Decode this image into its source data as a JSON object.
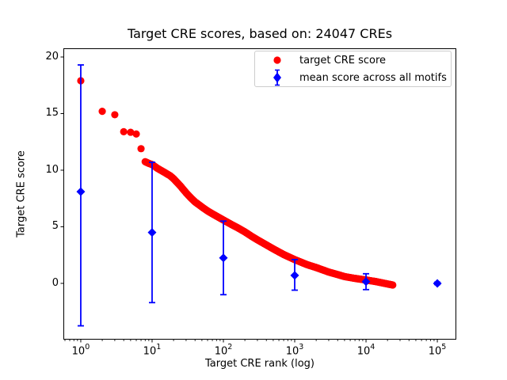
{
  "title": "Target CRE scores, based on: 24047 CREs",
  "chart_data": {
    "type": "scatter",
    "title": "Target CRE scores, based on: 24047 CREs",
    "xlabel": "Target CRE rank (log)",
    "ylabel": "Target CRE score",
    "x_scale": "log",
    "xlim_log10": [
      -0.244,
      5.266
    ],
    "ylim": [
      -4.97,
      20.77
    ],
    "grid": false,
    "legend_position": "upper center-right",
    "colors": {
      "red": "#ff0000",
      "blue": "#0000ff",
      "axis": "#000000"
    },
    "x_major_ticks": [
      {
        "base": "10",
        "exp": "0",
        "log10": 0
      },
      {
        "base": "10",
        "exp": "1",
        "log10": 1
      },
      {
        "base": "10",
        "exp": "2",
        "log10": 2
      },
      {
        "base": "10",
        "exp": "3",
        "log10": 3
      },
      {
        "base": "10",
        "exp": "4",
        "log10": 4
      },
      {
        "base": "10",
        "exp": "5",
        "log10": 5
      }
    ],
    "y_ticks": [
      {
        "value": 0,
        "label": "0"
      },
      {
        "value": 5,
        "label": "5"
      },
      {
        "value": 10,
        "label": "10"
      },
      {
        "value": 15,
        "label": "15"
      },
      {
        "value": 20,
        "label": "20"
      }
    ],
    "legend": [
      {
        "label": "target CRE score",
        "color": "#ff0000",
        "marker": "circle"
      },
      {
        "label": "mean score across all motifs",
        "color": "#0000ff",
        "marker": "diamond-errorbar"
      }
    ],
    "series": [
      {
        "name": "target CRE score",
        "type": "scatter",
        "color": "#ff0000",
        "marker": "circle",
        "marker_radius_px": 4.6,
        "points": [
          [
            1,
            17.9
          ],
          [
            2,
            15.2
          ],
          [
            3,
            14.9
          ],
          [
            4,
            13.4
          ],
          [
            5,
            13.35
          ],
          [
            6,
            13.2
          ],
          [
            7,
            11.9
          ]
        ],
        "dense_band": [
          [
            8,
            10.75
          ],
          [
            9,
            10.6
          ],
          [
            10,
            10.5
          ],
          [
            12,
            10.15
          ],
          [
            15,
            9.8
          ],
          [
            18,
            9.5
          ],
          [
            20,
            9.25
          ],
          [
            25,
            8.6
          ],
          [
            30,
            8.0
          ],
          [
            35,
            7.55
          ],
          [
            40,
            7.2
          ],
          [
            50,
            6.75
          ],
          [
            60,
            6.4
          ],
          [
            70,
            6.15
          ],
          [
            85,
            5.85
          ],
          [
            100,
            5.6
          ],
          [
            130,
            5.2
          ],
          [
            160,
            4.9
          ],
          [
            200,
            4.55
          ],
          [
            250,
            4.15
          ],
          [
            300,
            3.85
          ],
          [
            400,
            3.4
          ],
          [
            500,
            3.05
          ],
          [
            700,
            2.55
          ],
          [
            1000,
            2.1
          ],
          [
            1500,
            1.65
          ],
          [
            2000,
            1.4
          ],
          [
            3000,
            1.0
          ],
          [
            4000,
            0.78
          ],
          [
            5000,
            0.6
          ],
          [
            7000,
            0.44
          ],
          [
            10000,
            0.3
          ],
          [
            14000,
            0.15
          ],
          [
            20000,
            -0.05
          ],
          [
            24047,
            -0.15
          ]
        ]
      },
      {
        "name": "mean score across all motifs",
        "type": "errorbar",
        "color": "#0000ff",
        "marker": "diamond",
        "points": [
          {
            "x": 1,
            "mean": 8.1,
            "lo": -3.75,
            "hi": 19.3
          },
          {
            "x": 10,
            "mean": 4.5,
            "lo": -1.7,
            "hi": 10.7
          },
          {
            "x": 100,
            "mean": 2.25,
            "lo": -1.0,
            "hi": 5.5
          },
          {
            "x": 1000,
            "mean": 0.7,
            "lo": -0.6,
            "hi": 2.1
          },
          {
            "x": 10000,
            "mean": 0.15,
            "lo": -0.55,
            "hi": 0.85
          },
          {
            "x": 100000,
            "mean": 0.0,
            "lo": -0.1,
            "hi": 0.1
          }
        ]
      }
    ]
  }
}
